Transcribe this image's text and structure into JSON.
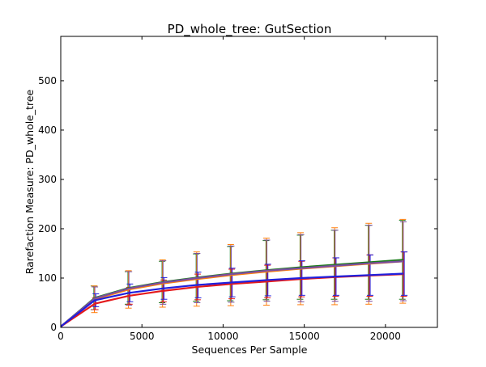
{
  "chart_data": {
    "type": "line",
    "title": "PD_whole_tree: GutSection",
    "xlabel": "Sequences Per Sample",
    "ylabel": "Rarefaction Measure: PD_whole_tree",
    "xlim": [
      0,
      23200
    ],
    "ylim": [
      0,
      590
    ],
    "x_ticks": [
      0,
      5000,
      10000,
      15000,
      20000
    ],
    "y_ticks": [
      0,
      100,
      200,
      300,
      400,
      500
    ],
    "grid": false,
    "legend": "none",
    "x": [
      10,
      2100,
      4200,
      6300,
      8400,
      10500,
      12700,
      14800,
      16900,
      19000,
      21100
    ],
    "series": [
      {
        "color": "#1a7a1a",
        "values": [
          2,
          60,
          80,
          92,
          101,
          109,
          116,
          122,
          127,
          132,
          137
        ],
        "errors": [
          0,
          24,
          33,
          42,
          48,
          55,
          60,
          65,
          70,
          75,
          80
        ]
      },
      {
        "color": "#ff7f0e",
        "values": [
          2,
          57,
          77,
          89,
          98,
          106,
          113,
          119,
          124,
          129,
          134
        ],
        "errors": [
          0,
          27,
          38,
          48,
          55,
          62,
          68,
          73,
          78,
          82,
          85
        ]
      },
      {
        "color": "#7a4fa0",
        "values": [
          2,
          59,
          79,
          91,
          100,
          108,
          115,
          120,
          125,
          130,
          134
        ],
        "errors": [
          0,
          23,
          34,
          44,
          50,
          57,
          62,
          68,
          72,
          77,
          80
        ]
      },
      {
        "color": "#e41a1c",
        "values": [
          2,
          48,
          64,
          74,
          82,
          88,
          93,
          98,
          102,
          105,
          108
        ],
        "errors": [
          0,
          12,
          17,
          22,
          26,
          30,
          33,
          36,
          39,
          42,
          45
        ]
      },
      {
        "color": "#2020dd",
        "values": [
          2,
          55,
          70,
          79,
          86,
          91,
          96,
          100,
          103,
          106,
          109
        ],
        "errors": [
          0,
          13,
          18,
          22,
          26,
          29,
          32,
          35,
          38,
          41,
          44
        ]
      }
    ]
  }
}
